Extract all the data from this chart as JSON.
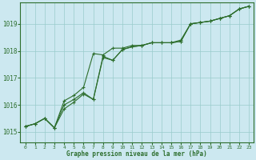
{
  "title": "Graphe pression niveau de la mer (hPa)",
  "background_color": "#cce8f0",
  "plot_bg_color": "#cce8f0",
  "grid_color": "#99cccc",
  "line_color": "#2d6e2d",
  "xlim": [
    -0.5,
    23.5
  ],
  "ylim": [
    1014.6,
    1019.8
  ],
  "yticks": [
    1015,
    1016,
    1017,
    1018,
    1019
  ],
  "xticks": [
    0,
    1,
    2,
    3,
    4,
    5,
    6,
    7,
    8,
    9,
    10,
    11,
    12,
    13,
    14,
    15,
    16,
    17,
    18,
    19,
    20,
    21,
    22,
    23
  ],
  "series1_x": [
    0,
    1,
    2,
    3,
    4,
    5,
    6,
    7,
    8,
    9,
    10,
    11,
    12,
    13,
    14,
    15,
    16,
    17,
    18,
    19,
    20,
    21,
    22,
    23
  ],
  "series1_y": [
    1015.2,
    1015.3,
    1015.5,
    1015.15,
    1015.85,
    1016.1,
    1016.4,
    1016.2,
    1017.8,
    1017.65,
    1018.05,
    1018.15,
    1018.2,
    1018.3,
    1018.3,
    1018.3,
    1018.35,
    1019.0,
    1019.05,
    1019.1,
    1019.2,
    1019.3,
    1019.55,
    1019.65
  ],
  "series2_x": [
    0,
    1,
    2,
    3,
    4,
    5,
    6,
    7,
    8,
    9,
    10,
    11,
    12,
    13,
    14,
    15,
    16,
    17,
    18,
    19,
    20,
    21,
    22,
    23
  ],
  "series2_y": [
    1015.2,
    1015.3,
    1015.5,
    1015.15,
    1016.15,
    1016.35,
    1016.65,
    1017.9,
    1017.85,
    1018.1,
    1018.1,
    1018.2,
    1018.2,
    1018.3,
    1018.3,
    1018.3,
    1018.4,
    1019.0,
    1019.05,
    1019.1,
    1019.2,
    1019.3,
    1019.55,
    1019.65
  ],
  "series3_x": [
    0,
    1,
    2,
    3,
    4,
    5,
    6,
    7,
    8,
    9,
    10,
    11,
    12,
    13,
    14,
    15,
    16,
    17,
    18,
    19,
    20,
    21,
    22,
    23
  ],
  "series3_y": [
    1015.2,
    1015.3,
    1015.5,
    1015.15,
    1016.0,
    1016.2,
    1016.45,
    1016.2,
    1017.75,
    1017.65,
    1018.05,
    1018.15,
    1018.2,
    1018.3,
    1018.3,
    1018.3,
    1018.35,
    1019.0,
    1019.05,
    1019.1,
    1019.2,
    1019.3,
    1019.55,
    1019.65
  ]
}
